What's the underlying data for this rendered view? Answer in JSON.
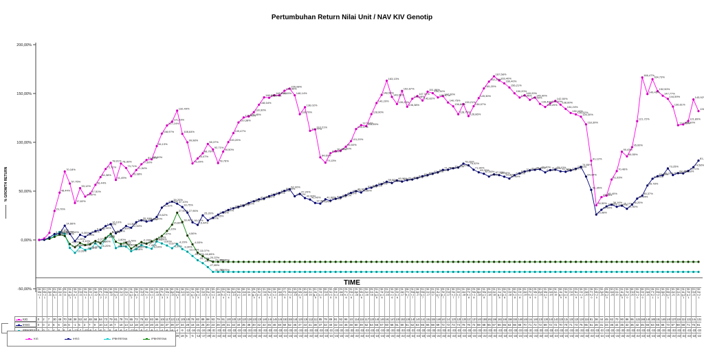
{
  "title": "Pertumbuhan Return Nilai Unit / NAV KIV Genotip",
  "axes": {
    "x_label": "TIME",
    "y_label": "% GROWTH RETURN",
    "y_ticks": [
      "200,00%",
      "150,00%",
      "100,00%",
      "50,00%",
      "0,00%",
      "-50,00%"
    ],
    "y_tick_values": [
      200,
      150,
      100,
      50,
      0,
      -50
    ]
  },
  "legend": {
    "items": [
      {
        "label": "KIG",
        "color": "#FF00E6"
      },
      {
        "label": "IHSG",
        "color": "#000080"
      },
      {
        "label": "IPBKRESNA",
        "color": "#00CCCC"
      },
      {
        "label": "IPBKRESNA",
        "color": "#008000"
      }
    ]
  },
  "table": {
    "row_labels": [
      "KIG",
      "IHSG",
      "IPBKRESNA"
    ]
  },
  "chart_data": {
    "type": "line",
    "title": "Pertumbuhan Return Nilai Unit / NAV KIV Genotip",
    "xlabel": "TIME",
    "ylabel": "% GROWTH RETURN",
    "ylim": [
      -50,
      200
    ],
    "grid": false,
    "legend_position": "bottom-left",
    "x": [
      "28-Mar-11",
      "31-Mar-11",
      "29-Apr-11",
      "31-May-11",
      "30-Jun-11",
      "29-Jul-11",
      "31-Aug-11",
      "30-Sep-11",
      "31-Oct-11",
      "30-Nov-11",
      "30-Dec-11",
      "31-Jan-12",
      "29-Feb-12",
      "30-Mar-12",
      "30-Apr-12",
      "31-May-12",
      "29-Jun-12",
      "31-Jul-12",
      "31-Aug-12",
      "28-Sep-12",
      "31-Oct-12",
      "30-Nov-12",
      "28-Dec-12",
      "31-Jan-13",
      "28-Feb-13",
      "28-Mar-13",
      "30-Apr-13",
      "31-May-13",
      "28-Jun-13",
      "31-Jul-13",
      "30-Aug-13",
      "30-Sep-13",
      "31-Oct-13",
      "29-Nov-13",
      "30-Dec-13",
      "31-Jan-14",
      "28-Feb-14",
      "28-Mar-14",
      "30-Apr-14",
      "30-May-14",
      "30-Jun-14",
      "31-Jul-14",
      "29-Aug-14",
      "30-Sep-14",
      "31-Oct-14",
      "28-Nov-14",
      "30-Dec-14",
      "30-Jan-15",
      "27-Feb-15",
      "31-Mar-15",
      "30-Apr-15",
      "29-May-15",
      "30-Jun-15",
      "31-Jul-15",
      "31-Aug-15",
      "30-Sep-15",
      "30-Oct-15",
      "30-Nov-15",
      "30-Dec-15",
      "29-Jan-16",
      "29-Feb-16",
      "31-Mar-16",
      "29-Apr-16",
      "31-May-16",
      "30-Jun-16",
      "29-Jul-16",
      "31-Aug-16",
      "30-Sep-16",
      "31-Oct-16",
      "30-Nov-16",
      "30-Dec-16",
      "31-Jan-17",
      "28-Feb-17",
      "31-Mar-17",
      "28-Apr-17",
      "31-May-17",
      "30-Jun-17",
      "31-Jul-17",
      "31-Aug-17",
      "29-Sep-17",
      "31-Oct-17",
      "30-Nov-17",
      "29-Dec-17",
      "31-Jan-18",
      "28-Feb-18",
      "29-Mar-18",
      "30-Apr-18",
      "31-May-18",
      "29-Jun-18",
      "31-Jul-18",
      "31-Aug-18",
      "28-Sep-18",
      "31-Oct-18",
      "30-Nov-18",
      "28-Dec-18",
      "31-Jan-19",
      "28-Feb-19",
      "29-Mar-19",
      "30-Apr-19",
      "31-May-19",
      "28-Jun-19",
      "31-Jul-19",
      "30-Aug-19",
      "30-Sep-19",
      "31-Oct-19",
      "29-Nov-19",
      "30-Dec-19",
      "31-Jan-20",
      "28-Feb-20",
      "31-Mar-20",
      "30-Apr-20",
      "29-May-20",
      "30-Jun-20",
      "31-Jul-20",
      "31-Aug-20",
      "30-Sep-20",
      "30-Oct-20",
      "30-Nov-20",
      "30-Dec-20",
      "29-Jan-21",
      "26-Feb-21",
      "31-Mar-21",
      "30-Apr-21",
      "31-May-21",
      "30-Jun-21",
      "30-Jul-21",
      "31-Aug-21",
      "30-Sep-21",
      "29-Oct-21",
      "30-Nov-21"
    ],
    "series": [
      {
        "name": "KIG",
        "color": "#FF00E6",
        "marker_color": "#CC00B8",
        "labels": "all",
        "values": [
          0,
          1.5,
          7.3,
          29.7,
          48.44,
          70.18,
          57.75,
          37.82,
          53.12,
          44.37,
          47.51,
          56.44,
          64.38,
          72.71,
          78.91,
          61.49,
          78.3,
          73.71,
          65.38,
          71.54,
          77.5,
          81.9,
          82.6,
          96.13,
          108.97,
          117.24,
          121.23,
          132.49,
          108.64,
          99.98,
          78.29,
          83.47,
          88.76,
          98.37,
          92.71,
          78.76,
          90.5,
          100.2,
          109.47,
          120.38,
          125.45,
          126.45,
          130.9,
          138.54,
          146.05,
          145.64,
          148.21,
          148.15,
          152.8,
          155.08,
          148.14,
          128.79,
          136.02,
          111.77,
          113.21,
          84.6,
          79.13,
          88.9,
          90.94,
          91.5,
          95.5,
          101.2,
          113.57,
          117.64,
          116.55,
          128.9,
          140.2,
          148.58,
          163.13,
          146.58,
          139.2,
          152.67,
          136.38,
          144.68,
          147.37,
          142.82,
          151.86,
          150.34,
          145.97,
          147.3,
          140.75,
          136.88,
          128.75,
          139.21,
          126.86,
          136.97,
          145.3,
          155.2,
          162.2,
          167.58,
          163.4,
          160.4,
          156.21,
          150.2,
          145.85,
          148.2,
          143.5,
          145.9,
          139.4,
          136.2,
          139.9,
          142.5,
          138.6,
          134.24,
          130.1,
          128.62,
          126.3,
          118.39,
          81.12,
          35.5,
          43.85,
          45.4,
          61.93,
          70.46,
          90.43,
          85.55,
          95.0,
          121.72,
          166.47,
          149.45,
          164.73,
          152.5,
          147.77,
          144.59,
          136.61,
          117.53,
          118.3,
          121.89,
          143.92,
          131.96
        ]
      },
      {
        "name": "IHSG",
        "color": "#000080",
        "marker_color": "#000066",
        "labels": "all",
        "values": [
          0,
          0.2,
          2.6,
          6.1,
          6.4,
          14.66,
          6.1,
          -1.2,
          5.3,
          3.2,
          6.5,
          9.1,
          10.3,
          14.2,
          16.1,
          6.9,
          9.8,
          14.3,
          12.5,
          18.2,
          20.1,
          18.9,
          19.8,
          23.62,
          33.11,
          37.15,
          39.2,
          37.1,
          33.75,
          27.96,
          18.02,
          15.44,
          25.2,
          19.97,
          22.65,
          25.9,
          28.24,
          30.7,
          32.4,
          33.9,
          35.2,
          37.8,
          39.6,
          41.64,
          42.3,
          44.77,
          46.2,
          48.1,
          50.3,
          52.0,
          44.7,
          47.2,
          42.9,
          41.4,
          37.9,
          37.24,
          41.6,
          40.2,
          42.1,
          43.5,
          45.8,
          48.2,
          49.9,
          48.6,
          52.3,
          53.51,
          55.8,
          57.2,
          59.6,
          58.3,
          60.9,
          59.8,
          61.2,
          61.87,
          63.4,
          65.2,
          66.4,
          67.9,
          69.3,
          71.78,
          71.92,
          73.4,
          74.2,
          78.2,
          76.42,
          71.9,
          69.3,
          67.8,
          64.9,
          67.2,
          66.4,
          64.8,
          62.9,
          66.3,
          68.2,
          70.1,
          71.3,
          71.8,
          72.4,
          69.2,
          71.5,
          72.1,
          70.3,
          69.8,
          71.2,
          72.9,
          74.86,
          64.94,
          51.35,
          25.98,
          30.9,
          34.38,
          36.16,
          33.97,
          35.17,
          31.9,
          36.2,
          42.34,
          45.37,
          55.78,
          62.7,
          65.3,
          66.2,
          73.25,
          66.5,
          68.4,
          68.18,
          70.71,
          74.58,
          81.3
        ]
      },
      {
        "name": "IPBKRESNA",
        "color": "#00CCCC",
        "marker_color": "#009999",
        "labels": "early",
        "values": [
          0,
          0.3,
          1.4,
          4.2,
          8.1,
          6.3,
          -8.2,
          -13.26,
          -7.5,
          -10.3,
          -9.1,
          -3.5,
          -8.2,
          1.2,
          6.1,
          -8.4,
          -6.3,
          -6.9,
          -11.58,
          -9.2,
          -5.37,
          -7.4,
          -9.04,
          -1.5,
          -3.6,
          -5.67,
          -8.5,
          -4.2,
          -9.3,
          -12.04,
          -16.4,
          -20.74,
          -23.75,
          -27.85,
          -32.75,
          -32.75,
          -32.75,
          -32.75,
          -32.75,
          -32.75,
          -32.75,
          -32.75,
          -32.75,
          -32.75,
          -32.75,
          -32.75,
          -32.75,
          -32.75,
          -32.75,
          -32.75,
          -32.75,
          -32.75,
          -32.75,
          -32.75,
          -32.75,
          -32.75,
          -32.75,
          -32.75,
          -32.75,
          -32.75,
          -32.75,
          -32.75,
          -32.75,
          -32.75,
          -32.75,
          -32.75,
          -32.75,
          -32.75,
          -32.75,
          -32.75,
          -32.75,
          -32.75,
          -32.75,
          -32.75,
          -32.75,
          -32.75,
          -32.75,
          -32.75,
          -32.75,
          -32.75,
          -32.75,
          -32.75,
          -32.75,
          -32.75,
          -32.75,
          -32.75,
          -32.75,
          -32.75,
          -32.75,
          -32.75,
          -32.75,
          -32.75,
          -32.75,
          -32.75,
          -32.75,
          -32.75,
          -32.75,
          -32.75,
          -32.75,
          -32.75,
          -32.75,
          -32.75,
          -32.75,
          -32.75,
          -32.75,
          -32.75,
          -32.75,
          -32.75,
          -32.75,
          -32.75,
          -32.75,
          -32.75,
          -32.75,
          -32.75,
          -32.75,
          -32.75,
          -32.75,
          -32.75,
          -32.75,
          -32.75,
          -32.75,
          -32.75,
          -32.75,
          -32.75,
          -32.75,
          -32.75,
          -32.75,
          -32.75,
          -32.75,
          -32.75
        ]
      },
      {
        "name": "IPBKRESNA",
        "color": "#008000",
        "marker_color": "#1a3300",
        "labels": "early",
        "values": [
          0,
          0.2,
          1.1,
          3.2,
          5.4,
          4.1,
          -4.2,
          -7.5,
          -3.1,
          -5.2,
          -4.37,
          -1.07,
          -3.5,
          2.1,
          6.36,
          -1.8,
          -4.15,
          -2.78,
          -8.84,
          -5.5,
          -2.2,
          -3.9,
          -1.5,
          0.8,
          4.07,
          9.2,
          15.6,
          27.9,
          18.4,
          4.5,
          -4.53,
          -13.07,
          -16.65,
          -20.22,
          -22.46,
          -22.46,
          -22.46,
          -22.46,
          -22.46,
          -22.46,
          -22.46,
          -22.46,
          -22.46,
          -22.46,
          -22.46,
          -22.46,
          -22.46,
          -22.46,
          -22.46,
          -22.46,
          -22.46,
          -22.46,
          -22.46,
          -22.46,
          -22.46,
          -22.46,
          -22.46,
          -22.46,
          -22.46,
          -22.46,
          -22.46,
          -22.46,
          -22.46,
          -22.46,
          -22.46,
          -22.46,
          -22.46,
          -22.46,
          -22.46,
          -22.46,
          -22.46,
          -22.46,
          -22.46,
          -22.46,
          -22.46,
          -22.46,
          -22.46,
          -22.46,
          -22.46,
          -22.46,
          -22.46,
          -22.46,
          -22.46,
          -22.46,
          -22.46,
          -22.46,
          -22.46,
          -22.46,
          -22.46,
          -22.46,
          -22.46,
          -22.46,
          -22.46,
          -22.46,
          -22.46,
          -22.46,
          -22.46,
          -22.46,
          -22.46,
          -22.46,
          -22.46,
          -22.46,
          -22.46,
          -22.46,
          -22.46,
          -22.46,
          -22.46,
          -22.46,
          -22.46,
          -22.46,
          -22.46,
          -22.46,
          -22.46,
          -22.46,
          -22.46,
          -22.46,
          -22.46,
          -22.46,
          -22.46,
          -22.46,
          -22.46,
          -22.46,
          -22.46,
          -22.46,
          -22.46,
          -22.46,
          -22.46,
          -22.46,
          -22.46,
          -22.46
        ]
      }
    ]
  }
}
